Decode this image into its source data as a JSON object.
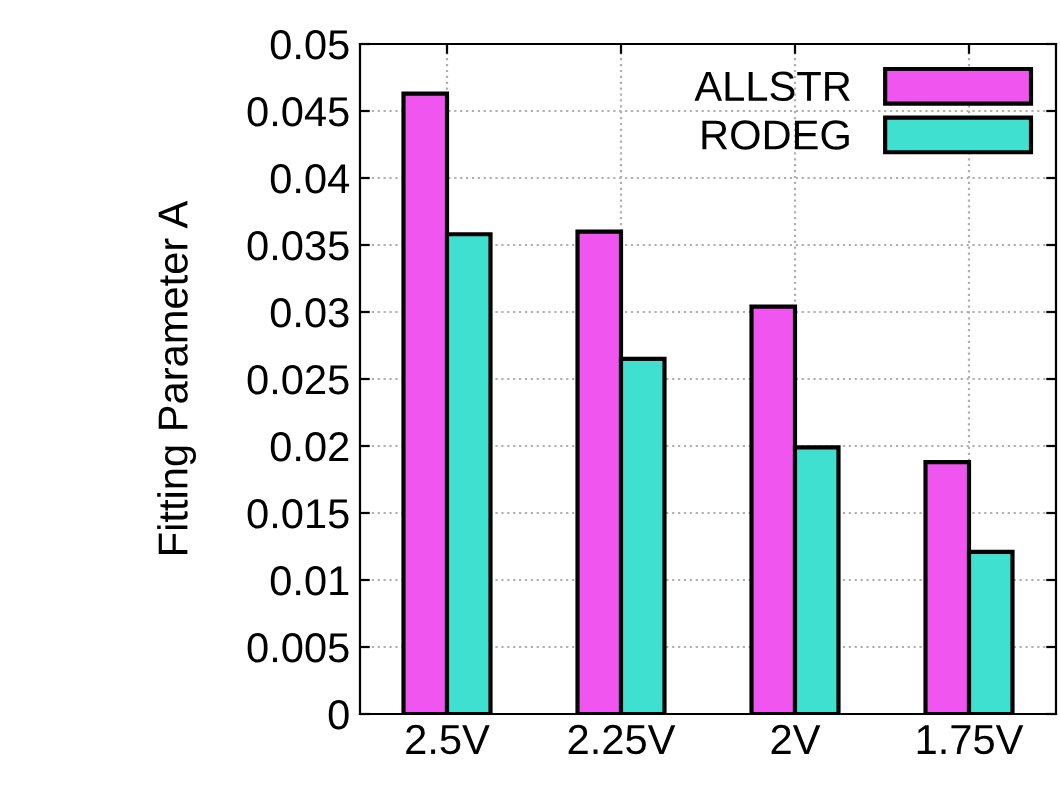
{
  "chart_data": {
    "type": "bar",
    "ylabel": "Fitting Parameter A",
    "categories": [
      "2.5V",
      "2.25V",
      "2V",
      "1.75V"
    ],
    "series": [
      {
        "name": "ALLSTR",
        "color": "#f055f0",
        "values": [
          0.0463,
          0.036,
          0.0304,
          0.0188
        ]
      },
      {
        "name": "RODEG",
        "color": "#40e0d0",
        "values": [
          0.0358,
          0.0265,
          0.0199,
          0.0121
        ]
      }
    ],
    "ylim": [
      0,
      0.05
    ],
    "yticks": [
      0,
      0.005,
      0.01,
      0.015,
      0.02,
      0.025,
      0.03,
      0.035,
      0.04,
      0.045,
      0.05
    ],
    "grid": true,
    "legend": "top right"
  }
}
